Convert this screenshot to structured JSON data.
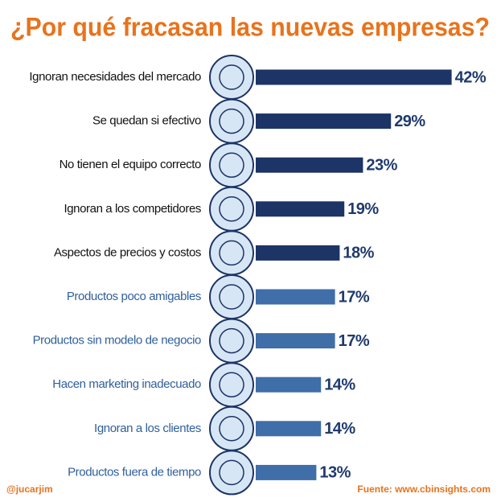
{
  "chart_data": {
    "type": "bar",
    "orientation": "horizontal",
    "title": "¿Por qué fracasan las nuevas empresas?",
    "categories": [
      "Ignoran necesidades del mercado",
      "Se quedan si efectivo",
      "No tienen el equipo correcto",
      "Ignoran a los competidores",
      "Aspectos de precios y costos",
      "Productos poco amigables",
      "Productos sin modelo de negocio",
      "Hacen marketing inadecuado",
      "Ignoran a los clientes",
      "Productos fuera de tiempo"
    ],
    "values": [
      42,
      29,
      23,
      19,
      18,
      17,
      17,
      14,
      14,
      13
    ],
    "value_labels": [
      "42%",
      "29%",
      "23%",
      "19%",
      "18%",
      "17%",
      "17%",
      "14%",
      "14%",
      "13%"
    ],
    "colors": [
      "#1c3466",
      "#1c3466",
      "#1c3466",
      "#1c3466",
      "#1c3466",
      "#3f6ea8",
      "#3f6ea8",
      "#3f6ea8",
      "#3f6ea8",
      "#3f6ea8"
    ],
    "label_colors": [
      "#111111",
      "#111111",
      "#111111",
      "#111111",
      "#111111",
      "#2f5f9c",
      "#2f5f9c",
      "#2f5f9c",
      "#2f5f9c",
      "#2f5f9c"
    ],
    "credit": "@jucarjim",
    "source": "Fuente: www.cbinsights.com"
  }
}
